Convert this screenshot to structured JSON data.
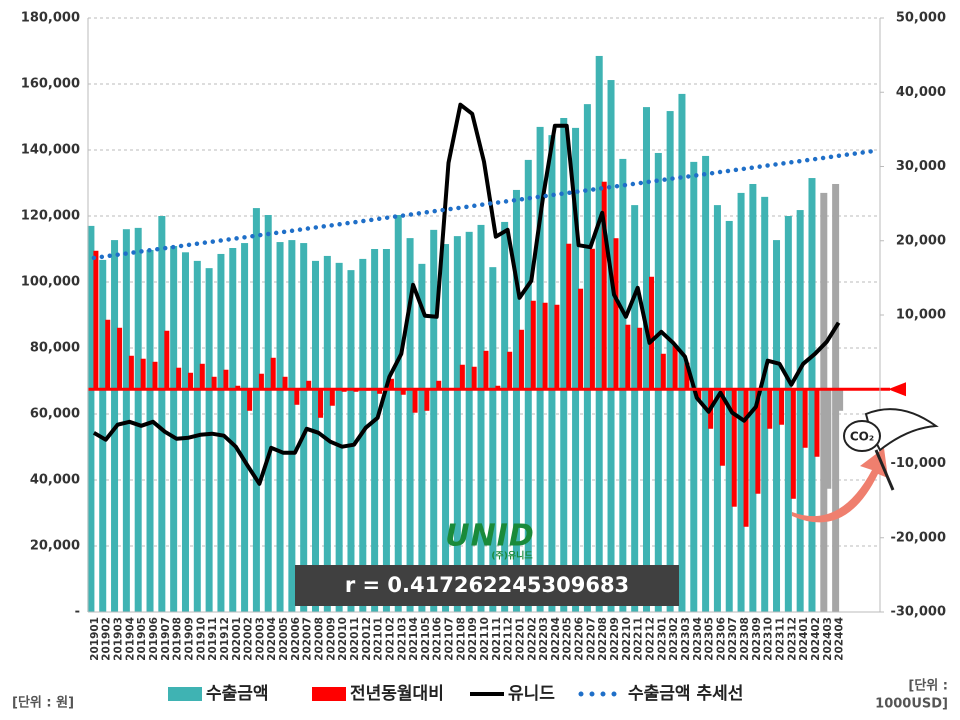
{
  "chart_data": {
    "type": "combo",
    "categories": [
      "201901",
      "201902",
      "201903",
      "201904",
      "201905",
      "201906",
      "201907",
      "201908",
      "201909",
      "201910",
      "201911",
      "201912",
      "202001",
      "202002",
      "202003",
      "202004",
      "202005",
      "202006",
      "202007",
      "202008",
      "202009",
      "202010",
      "202011",
      "202012",
      "202101",
      "202102",
      "202103",
      "202104",
      "202105",
      "202106",
      "202107",
      "202108",
      "202109",
      "202110",
      "202111",
      "202112",
      "202201",
      "202202",
      "202203",
      "202204",
      "202205",
      "202206",
      "202207",
      "202208",
      "202209",
      "202210",
      "202211",
      "202212",
      "202301",
      "202302",
      "202303",
      "202304",
      "202305",
      "202306",
      "202307",
      "202308",
      "202309",
      "202310",
      "202311",
      "202312",
      "202401",
      "202402",
      "202403",
      "202404",
      null,
      null,
      null
    ],
    "series": [
      {
        "name": "수출금액",
        "kind": "bar",
        "axis": "y",
        "color": "#3fb3b3",
        "colors": [
          "#3fb3b3",
          "#3fb3b3",
          "#3fb3b3",
          "#3fb3b3",
          "#3fb3b3",
          "#3fb3b3",
          "#3fb3b3",
          "#3fb3b3",
          "#3fb3b3",
          "#3fb3b3",
          "#3fb3b3",
          "#3fb3b3",
          "#3fb3b3",
          "#3fb3b3",
          "#3fb3b3",
          "#3fb3b3",
          "#3fb3b3",
          "#3fb3b3",
          "#3fb3b3",
          "#3fb3b3",
          "#3fb3b3",
          "#3fb3b3",
          "#3fb3b3",
          "#3fb3b3",
          "#3fb3b3",
          "#3fb3b3",
          "#3fb3b3",
          "#3fb3b3",
          "#3fb3b3",
          "#3fb3b3",
          "#3fb3b3",
          "#3fb3b3",
          "#3fb3b3",
          "#3fb3b3",
          "#3fb3b3",
          "#3fb3b3",
          "#3fb3b3",
          "#3fb3b3",
          "#3fb3b3",
          "#3fb3b3",
          "#3fb3b3",
          "#3fb3b3",
          "#3fb3b3",
          "#3fb3b3",
          "#3fb3b3",
          "#3fb3b3",
          "#3fb3b3",
          "#3fb3b3",
          "#3fb3b3",
          "#3fb3b3",
          "#3fb3b3",
          "#3fb3b3",
          "#3fb3b3",
          "#3fb3b3",
          "#3fb3b3",
          "#3fb3b3",
          "#3fb3b3",
          "#3fb3b3",
          "#3fb3b3",
          "#3fb3b3",
          "#3fb3b3",
          "#3fb3b3",
          "#a6a6a6",
          "#a6a6a6",
          null,
          null,
          null
        ],
        "values": [
          117000,
          106700,
          112700,
          116000,
          116400,
          109700,
          120000,
          110900,
          109000,
          106400,
          104200,
          108500,
          110300,
          111800,
          122400,
          120300,
          112100,
          112700,
          111800,
          106400,
          107900,
          105800,
          103600,
          107000,
          110000,
          110000,
          120300,
          113300,
          105500,
          115800,
          111500,
          113900,
          115200,
          117300,
          104500,
          118200,
          127900,
          137000,
          147000,
          144500,
          149700,
          146700,
          153900,
          168500,
          161200,
          137300,
          123300,
          153000,
          139100,
          151800,
          157000,
          136400,
          138200,
          123300,
          118500,
          127000,
          129700,
          125800,
          112700,
          120000,
          121800,
          131500,
          127000,
          129700,
          null,
          null,
          null
        ]
      },
      {
        "name": "전년동월대비",
        "kind": "bar",
        "axis": "y2",
        "color": "#ff0000",
        "colors": [
          "#ff0000",
          "#ff0000",
          "#ff0000",
          "#ff0000",
          "#ff0000",
          "#ff0000",
          "#ff0000",
          "#ff0000",
          "#ff0000",
          "#ff0000",
          "#ff0000",
          "#ff0000",
          "#ff0000",
          "#ff0000",
          "#ff0000",
          "#ff0000",
          "#ff0000",
          "#ff0000",
          "#ff0000",
          "#ff0000",
          "#ff0000",
          "#ff0000",
          "#ff0000",
          "#ff0000",
          "#ff0000",
          "#ff0000",
          "#ff0000",
          "#ff0000",
          "#ff0000",
          "#ff0000",
          "#ff0000",
          "#ff0000",
          "#ff0000",
          "#ff0000",
          "#ff0000",
          "#ff0000",
          "#ff0000",
          "#ff0000",
          "#ff0000",
          "#ff0000",
          "#ff0000",
          "#ff0000",
          "#ff0000",
          "#ff0000",
          "#ff0000",
          "#ff0000",
          "#ff0000",
          "#ff0000",
          "#ff0000",
          "#ff0000",
          "#ff0000",
          "#ff0000",
          "#ff0000",
          "#ff0000",
          "#ff0000",
          "#ff0000",
          "#ff0000",
          "#ff0000",
          "#ff0000",
          "#ff0000",
          "#ff0000",
          "#ff0000",
          "#a6a6a6",
          "#a6a6a6",
          null,
          null,
          null
        ],
        "values": [
          18650,
          9360,
          8280,
          4510,
          4110,
          3700,
          7880,
          2900,
          2220,
          3430,
          1680,
          2630,
          470,
          -2900,
          2090,
          4240,
          1680,
          -2090,
          1140,
          -3840,
          -2220,
          -340,
          -340,
          -200,
          -610,
          1410,
          -740,
          -3160,
          -2900,
          1140,
          70,
          3300,
          3030,
          5180,
          470,
          5050,
          8010,
          11920,
          11650,
          11380,
          19600,
          13540,
          18920,
          27950,
          20340,
          8690,
          8280,
          15150,
          4780,
          5860,
          3570,
          -1550,
          -5320,
          -10300,
          -15820,
          -18520,
          -14070,
          -5320,
          -4780,
          -14750,
          -7880,
          -9090,
          -13400,
          -2900,
          null,
          null,
          null
        ]
      },
      {
        "name": "유니드",
        "kind": "line",
        "axis": "y2",
        "color": "#000000",
        "values": [
          -5860,
          -6800,
          -4780,
          -4380,
          -4920,
          -4380,
          -5720,
          -6670,
          -6530,
          -6130,
          -5990,
          -6260,
          -7740,
          -10300,
          -12730,
          -7880,
          -8550,
          -8550,
          -5320,
          -5860,
          -7070,
          -7740,
          -7470,
          -5180,
          -3840,
          1680,
          4780,
          14070,
          9900,
          9760,
          30500,
          38320,
          37100,
          30640,
          20540,
          21480,
          12320,
          14610,
          25930,
          35490,
          35490,
          19400,
          19130,
          23770,
          12730,
          9760,
          13670,
          6260,
          7740,
          6260,
          4380,
          -1150,
          -3030,
          -470,
          -3160,
          -4240,
          -2360,
          3840,
          3430,
          610,
          3430,
          4780,
          6400,
          8960,
          null,
          null,
          null
        ]
      },
      {
        "name": "수출금액 추세선",
        "kind": "dotted",
        "axis": "y",
        "color": "#1f6fc8",
        "values": [
          107300,
          107790,
          108280,
          108770,
          109260,
          109760,
          110250,
          110740,
          111230,
          111720,
          112210,
          112700,
          113190,
          113680,
          114170,
          114670,
          115160,
          115650,
          116140,
          116630,
          117120,
          117610,
          118100,
          118590,
          119080,
          119580,
          120070,
          120560,
          121050,
          121540,
          122030,
          122520,
          123010,
          123500,
          123990,
          124490,
          124980,
          125470,
          125960,
          126450,
          126940,
          127430,
          127920,
          128410,
          128900,
          129400,
          129890,
          130380,
          130870,
          131360,
          131850,
          132340,
          132830,
          133320,
          133810,
          134310,
          134800,
          135290,
          135780,
          136270,
          136760,
          137250,
          137740,
          138230,
          138720,
          139210,
          139700
        ]
      }
    ],
    "ylim": [
      0,
      180000
    ],
    "yticks": [
      {
        "value": 0,
        "label": "-"
      },
      {
        "value": 20000,
        "label": "20,000"
      },
      {
        "value": 40000,
        "label": "40,000"
      },
      {
        "value": 60000,
        "label": "60,000"
      },
      {
        "value": 80000,
        "label": "80,000"
      },
      {
        "value": 100000,
        "label": "100,000"
      },
      {
        "value": 120000,
        "label": "120,000"
      },
      {
        "value": 140000,
        "label": "140,000"
      },
      {
        "value": 160000,
        "label": "160,000"
      },
      {
        "value": 180000,
        "label": "180,000"
      }
    ],
    "y2lim": [
      -30000,
      50000
    ],
    "y2ticks": [
      {
        "value": -30000,
        "label": "-30,000"
      },
      {
        "value": -20000,
        "label": "-20,000"
      },
      {
        "value": -10000,
        "label": "-10,000"
      },
      {
        "value": 10000,
        "label": "10,000"
      },
      {
        "value": 20000,
        "label": "20,000"
      },
      {
        "value": 30000,
        "label": "30,000"
      },
      {
        "value": 40000,
        "label": "40,000"
      },
      {
        "value": 50000,
        "label": "50,000"
      }
    ],
    "grid": true,
    "legend": "bottom",
    "annotation": "r = 0.417262245309683",
    "logo": "UNID",
    "logo_sub": "(주)유니드",
    "icon_text": "CO₂",
    "unit_left": "[단위 : 원]",
    "unit_right": [
      "[단위 :",
      "1000USD]"
    ]
  }
}
